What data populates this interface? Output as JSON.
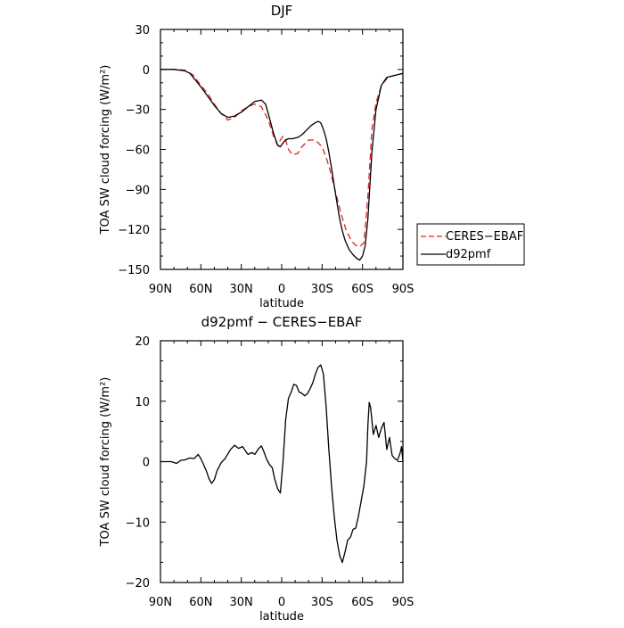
{
  "chart_data": [
    {
      "type": "line",
      "title": "DJF",
      "xlabel": "latitude",
      "ylabel": "TOA SW cloud forcing (W/m²)",
      "xlim": [
        90,
        -90
      ],
      "ylim": [
        -150,
        30
      ],
      "xticks": [
        90,
        60,
        30,
        0,
        -30,
        -60,
        -90
      ],
      "xtick_labels": [
        "90N",
        "60N",
        "30N",
        "0",
        "30S",
        "60S",
        "90S"
      ],
      "yticks": [
        30,
        0,
        -30,
        -60,
        -90,
        -120,
        -150
      ],
      "ytick_labels": [
        "30",
        "0",
        "−30",
        "−60",
        "−90",
        "−120",
        "−150"
      ],
      "legend_position": "right",
      "series": [
        {
          "name": "CERES−EBAF",
          "color": "#e32020",
          "dash": "dashed",
          "x": [
            90,
            80,
            72,
            66,
            60,
            55,
            50,
            45,
            40,
            35,
            30,
            25,
            20,
            15,
            10,
            6,
            3,
            1,
            -1,
            -3,
            -5,
            -8,
            -12,
            -15,
            -20,
            -25,
            -30,
            -33,
            -36,
            -40,
            -44,
            -48,
            -52,
            -55,
            -58,
            -61,
            -64,
            -67,
            -70,
            -74,
            -78,
            -82,
            -86,
            -90
          ],
          "y": [
            0,
            0,
            -0.5,
            -4,
            -12,
            -18,
            -26,
            -33,
            -38,
            -36,
            -31,
            -28,
            -26,
            -28,
            -38,
            -50,
            -57,
            -53,
            -50,
            -53,
            -60,
            -64,
            -63,
            -58,
            -53,
            -53,
            -58,
            -66,
            -76,
            -92,
            -108,
            -121,
            -129,
            -132,
            -133,
            -130,
            -95,
            -45,
            -25,
            -12,
            -7,
            -5,
            -4,
            -3
          ]
        },
        {
          "name": "d92pmf",
          "color": "#000000",
          "dash": "solid",
          "x": [
            90,
            80,
            72,
            68,
            64,
            60,
            55,
            50,
            45,
            40,
            35,
            30,
            25,
            20,
            15,
            12,
            10,
            6,
            3,
            1,
            -1,
            -3,
            -5,
            -8,
            -12,
            -15,
            -18,
            -22,
            -25,
            -27,
            -29,
            -31,
            -33,
            -35,
            -37,
            -39,
            -41,
            -43,
            -45,
            -47,
            -50,
            -53,
            -56,
            -58,
            -60,
            -62,
            -64,
            -67,
            -70,
            -74,
            -78,
            -82,
            -86,
            -90
          ],
          "y": [
            0,
            0,
            -1,
            -3,
            -8,
            -13,
            -20,
            -27,
            -33,
            -36,
            -35,
            -32,
            -28,
            -24,
            -23,
            -26,
            -33,
            -48,
            -57,
            -58,
            -55,
            -53,
            -52,
            -52,
            -51,
            -49,
            -46,
            -42,
            -40,
            -39,
            -40,
            -45,
            -52,
            -62,
            -74,
            -87,
            -100,
            -112,
            -121,
            -128,
            -135,
            -139,
            -142,
            -143,
            -140,
            -132,
            -112,
            -62,
            -30,
            -12,
            -6,
            -5,
            -4,
            -3
          ]
        }
      ]
    },
    {
      "type": "line",
      "title": "d92pmf − CERES−EBAF",
      "xlabel": "latitude",
      "ylabel": "TOA SW cloud forcing (W/m²)",
      "xlim": [
        90,
        -90
      ],
      "ylim": [
        -20,
        20
      ],
      "xticks": [
        90,
        60,
        30,
        0,
        -30,
        -60,
        -90
      ],
      "xtick_labels": [
        "90N",
        "60N",
        "30N",
        "0",
        "30S",
        "60S",
        "90S"
      ],
      "yticks": [
        20,
        10,
        0,
        -10,
        -20
      ],
      "ytick_labels": [
        "20",
        "10",
        "0",
        "−10",
        "−20"
      ],
      "series": [
        {
          "color": "#000000",
          "dash": "solid",
          "x": [
            90,
            82,
            78,
            75,
            72,
            68,
            65,
            62,
            60,
            58,
            56,
            54,
            52,
            50,
            48,
            45,
            42,
            38,
            35,
            32,
            29,
            27,
            25,
            22,
            20,
            17,
            15,
            13,
            11,
            9,
            7,
            5,
            3,
            1,
            -1,
            -3,
            -5,
            -7,
            -9,
            -11,
            -13,
            -15,
            -17,
            -19,
            -21,
            -23,
            -25,
            -27,
            -29,
            -31,
            -33,
            -35,
            -37,
            -39,
            -41,
            -43,
            -45,
            -47,
            -49,
            -51,
            -53,
            -55,
            -57,
            -59,
            -61,
            -63,
            -64,
            -65,
            -66,
            -68,
            -70,
            -72,
            -74,
            -76,
            -78,
            -80,
            -82,
            -84,
            -86,
            -88,
            -89,
            -90
          ],
          "y": [
            0,
            0,
            -0.3,
            0.2,
            0.3,
            0.6,
            0.5,
            1.2,
            0.5,
            -0.5,
            -1.5,
            -2.8,
            -3.6,
            -3,
            -1.5,
            -0.2,
            0.5,
            2,
            2.7,
            2.2,
            2.5,
            1.8,
            1.2,
            1.5,
            1.2,
            2.2,
            2.6,
            1.5,
            0.3,
            -0.5,
            -1,
            -3,
            -4.5,
            -5.2,
            0,
            7,
            10.5,
            11.5,
            12.8,
            12.6,
            11.5,
            11.3,
            10.9,
            11.2,
            12,
            13,
            14.5,
            15.6,
            16,
            14.5,
            9,
            2,
            -4,
            -9,
            -13,
            -15.5,
            -16.7,
            -15,
            -13,
            -12.5,
            -11.2,
            -11,
            -9,
            -6.5,
            -4,
            0,
            6,
            9.8,
            9,
            4.5,
            6,
            4,
            5.5,
            6.5,
            2,
            4,
            1,
            0.5,
            0.2,
            1.5,
            2.5,
            0
          ]
        }
      ]
    }
  ]
}
